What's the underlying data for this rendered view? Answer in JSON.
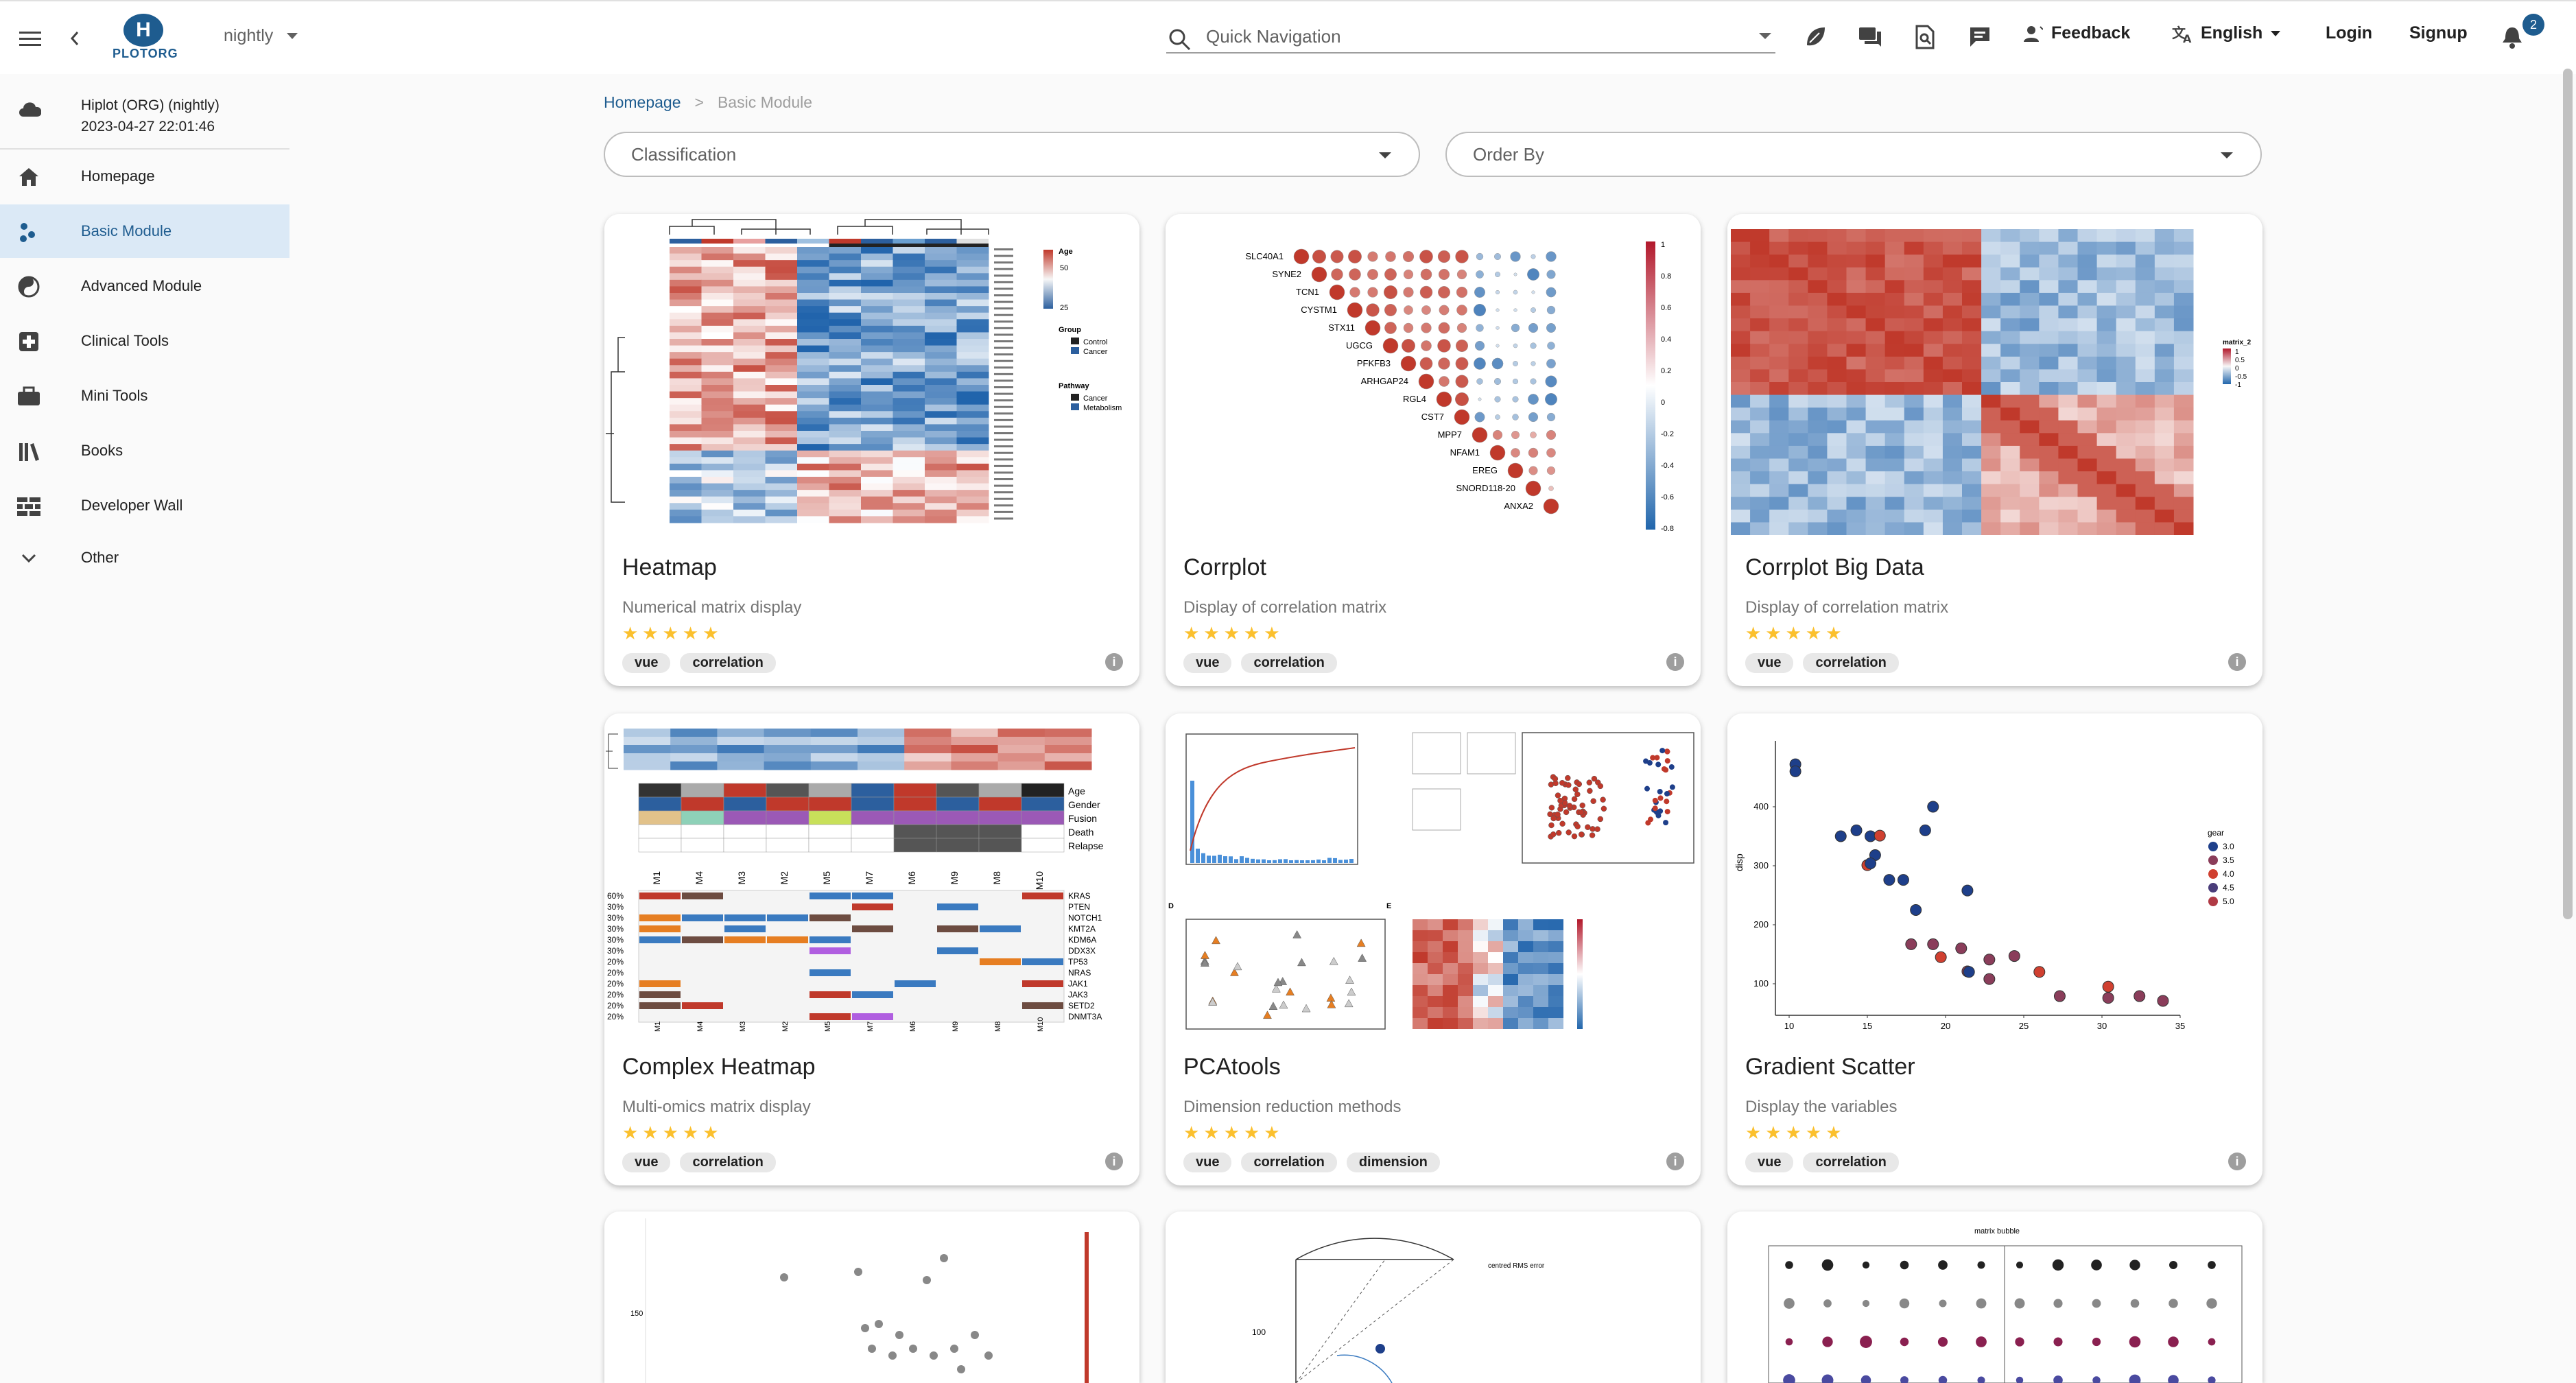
{
  "app": {
    "logo_letter": "H",
    "logo_text": "PLOTORG",
    "env": "nightly"
  },
  "topbar": {
    "search_placeholder": "Quick Navigation",
    "feedback": "Feedback",
    "language": "English",
    "login": "Login",
    "signup": "Signup",
    "notifications": "2"
  },
  "sidebar": {
    "org_name": "Hiplot (ORG) (nightly)",
    "org_time": "2023-04-27 22:01:46",
    "items": [
      {
        "label": "Homepage",
        "icon": "home-icon"
      },
      {
        "label": "Basic Module",
        "icon": "scatter-icon"
      },
      {
        "label": "Advanced Module",
        "icon": "yin-yang-icon"
      },
      {
        "label": "Clinical Tools",
        "icon": "medical-plus-icon"
      },
      {
        "label": "Mini Tools",
        "icon": "toolbox-icon"
      },
      {
        "label": "Books",
        "icon": "books-icon"
      },
      {
        "label": "Developer Wall",
        "icon": "wall-icon"
      },
      {
        "label": "Other",
        "icon": "chevron-down-icon"
      }
    ]
  },
  "breadcrumb": {
    "home": "Homepage",
    "sep": ">",
    "current": "Basic Module"
  },
  "filters": {
    "classification": "Classification",
    "order_by": "Order By"
  },
  "cards": [
    {
      "title": "Heatmap",
      "desc": "Numerical matrix display",
      "rating": 5,
      "tags": [
        "vue",
        "correlation"
      ]
    },
    {
      "title": "Corrplot",
      "desc": "Display of correlation matrix",
      "rating": 5,
      "tags": [
        "vue",
        "correlation"
      ]
    },
    {
      "title": "Corrplot Big Data",
      "desc": "Display of correlation matrix",
      "rating": 5,
      "tags": [
        "vue",
        "correlation"
      ]
    },
    {
      "title": "Complex Heatmap",
      "desc": "Multi-omics matrix display",
      "rating": 5,
      "tags": [
        "vue",
        "correlation"
      ]
    },
    {
      "title": "PCAtools",
      "desc": "Dimension reduction methods",
      "rating": 5,
      "tags": [
        "vue",
        "correlation",
        "dimension"
      ]
    },
    {
      "title": "Gradient Scatter",
      "desc": "Display the variables",
      "rating": 5,
      "tags": [
        "vue",
        "correlation"
      ]
    }
  ],
  "thumbs": {
    "corrplot_genes": [
      "SLC40A1",
      "SYNE2",
      "TCN1",
      "CYSTM1",
      "STX11",
      "UGCG",
      "PFKFB3",
      "ARHGAP24",
      "RGL4",
      "CST7",
      "MPP7",
      "NFAM1",
      "EREG",
      "SNORD118-20",
      "ANXA2"
    ],
    "corrplot_scale": [
      "1",
      "0.8",
      "0.6",
      "0.4",
      "0.2",
      "0",
      "-0.2",
      "-0.4",
      "-0.6",
      "-0.8"
    ],
    "heatmap_legend": [
      "Age",
      "50",
      "25",
      "Group",
      "Control",
      "Cancer",
      "Pathway",
      "Cancer",
      "Metabolism"
    ],
    "complex_cols": [
      "M1",
      "M4",
      "M3",
      "M2",
      "M5",
      "M7",
      "M6",
      "M9",
      "M8",
      "M10"
    ],
    "complex_annot": [
      "Age",
      "Gender",
      "Fusion",
      "Death",
      "Relapse"
    ],
    "complex_genes": [
      "KRAS",
      "PTEN",
      "NOTCH1",
      "KMT2A",
      "KDM6A",
      "DDX3X",
      "TP53",
      "NRAS",
      "JAK1",
      "JAK3",
      "SETD2",
      "DNMT3A"
    ],
    "complex_pct": [
      "60%",
      "30%",
      "30%",
      "30%",
      "30%",
      "30%",
      "20%",
      "20%",
      "20%",
      "20%",
      "20%",
      "20%"
    ],
    "corrbig_legend": [
      "matrix_2",
      "1",
      "0.5",
      "0",
      "-0.5",
      "-1"
    ],
    "scatter_yticks": [
      "400",
      "300",
      "200",
      "100"
    ],
    "scatter_xticks": [
      "10",
      "15",
      "20",
      "25",
      "30",
      "35"
    ],
    "scatter_ylabel": "disp",
    "scatter_legend_title": "gear",
    "scatter_legend": [
      "3.0",
      "3.5",
      "4.0",
      "4.5",
      "5.0"
    ],
    "pca_d": "D",
    "pca_e": "E",
    "peek_y1": "150",
    "peek_y2": "100",
    "peek_label": "centred RMS error",
    "peek_title": "matrix bubble"
  }
}
